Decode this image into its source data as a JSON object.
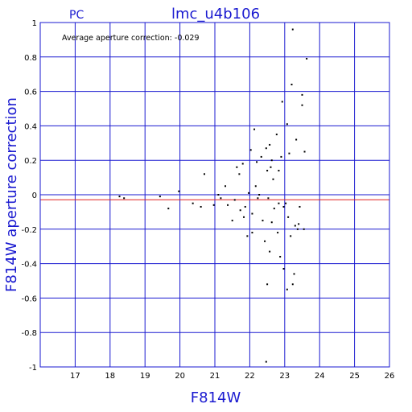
{
  "chart_data": {
    "type": "scatter",
    "title": "lmc_u4b106",
    "corner_label": "PC",
    "xlabel": "F814W",
    "ylabel": "F814W aperture correction",
    "annotation": "Average aperture correction: -0.029",
    "xlim": [
      16,
      26
    ],
    "ylim": [
      -1,
      1
    ],
    "xticks": [
      17,
      18,
      19,
      20,
      21,
      22,
      23,
      24,
      25,
      26
    ],
    "yticks": [
      -1,
      -0.8,
      -0.6,
      -0.4,
      -0.2,
      0,
      0.2,
      0.4,
      0.6,
      0.8,
      1
    ],
    "xtick_labels": [
      "17",
      "18",
      "19",
      "20",
      "21",
      "22",
      "23",
      "24",
      "25",
      "26"
    ],
    "ytick_labels": [
      "-1",
      "-0.8",
      "-0.6",
      "-0.4",
      "-0.2",
      "0",
      "0.2",
      "0.4",
      "0.6",
      "0.8",
      "1"
    ],
    "grid": true,
    "reference_lines": [
      {
        "y": 0,
        "color": "#1a1ad0"
      },
      {
        "y": -0.029,
        "color": "#e02020"
      }
    ],
    "points": [
      {
        "x": 18.27,
        "y": -0.01
      },
      {
        "x": 18.4,
        "y": -0.02
      },
      {
        "x": 19.43,
        "y": -0.01
      },
      {
        "x": 19.67,
        "y": -0.08
      },
      {
        "x": 19.97,
        "y": 0.02
      },
      {
        "x": 20.37,
        "y": -0.05
      },
      {
        "x": 20.6,
        "y": -0.07
      },
      {
        "x": 20.7,
        "y": 0.12
      },
      {
        "x": 20.97,
        "y": -0.06
      },
      {
        "x": 21.1,
        "y": 0.0
      },
      {
        "x": 21.17,
        "y": -0.02
      },
      {
        "x": 21.3,
        "y": 0.05
      },
      {
        "x": 21.37,
        "y": -0.06
      },
      {
        "x": 21.5,
        "y": -0.15
      },
      {
        "x": 21.57,
        "y": -0.03
      },
      {
        "x": 21.63,
        "y": 0.16
      },
      {
        "x": 21.7,
        "y": 0.12
      },
      {
        "x": 21.73,
        "y": -0.09
      },
      {
        "x": 21.8,
        "y": 0.18
      },
      {
        "x": 21.83,
        "y": -0.13
      },
      {
        "x": 21.87,
        "y": -0.07
      },
      {
        "x": 21.93,
        "y": -0.24
      },
      {
        "x": 21.97,
        "y": 0.01
      },
      {
        "x": 22.03,
        "y": 0.26
      },
      {
        "x": 22.07,
        "y": -0.11
      },
      {
        "x": 22.13,
        "y": 0.38
      },
      {
        "x": 22.17,
        "y": 0.05
      },
      {
        "x": 22.2,
        "y": 0.19
      },
      {
        "x": 22.23,
        "y": -0.02
      },
      {
        "x": 22.27,
        "y": 0.0
      },
      {
        "x": 22.33,
        "y": 0.22
      },
      {
        "x": 22.37,
        "y": -0.15
      },
      {
        "x": 22.43,
        "y": -0.27
      },
      {
        "x": 22.47,
        "y": 0.27
      },
      {
        "x": 22.5,
        "y": 0.14
      },
      {
        "x": 22.53,
        "y": -0.02
      },
      {
        "x": 22.57,
        "y": 0.29
      },
      {
        "x": 22.6,
        "y": 0.16
      },
      {
        "x": 22.63,
        "y": -0.16
      },
      {
        "x": 22.67,
        "y": 0.09
      },
      {
        "x": 22.7,
        "y": -0.08
      },
      {
        "x": 22.77,
        "y": 0.35
      },
      {
        "x": 22.8,
        "y": -0.22
      },
      {
        "x": 22.83,
        "y": 0.14
      },
      {
        "x": 22.87,
        "y": -0.36
      },
      {
        "x": 22.93,
        "y": 0.54
      },
      {
        "x": 22.97,
        "y": -0.07
      },
      {
        "x": 23.03,
        "y": -0.05
      },
      {
        "x": 23.07,
        "y": 0.41
      },
      {
        "x": 23.1,
        "y": -0.13
      },
      {
        "x": 23.13,
        "y": 0.24
      },
      {
        "x": 23.17,
        "y": -0.24
      },
      {
        "x": 23.2,
        "y": 0.64
      },
      {
        "x": 23.23,
        "y": 0.96
      },
      {
        "x": 23.27,
        "y": -0.46
      },
      {
        "x": 23.33,
        "y": 0.32
      },
      {
        "x": 23.37,
        "y": -0.2
      },
      {
        "x": 23.43,
        "y": -0.07
      },
      {
        "x": 23.5,
        "y": 0.58
      },
      {
        "x": 23.57,
        "y": 0.25
      },
      {
        "x": 23.63,
        "y": 0.79
      },
      {
        "x": 23.23,
        "y": -0.52
      },
      {
        "x": 22.5,
        "y": -0.52
      },
      {
        "x": 22.47,
        "y": -0.97
      },
      {
        "x": 23.5,
        "y": 0.52
      },
      {
        "x": 23.4,
        "y": -0.17
      },
      {
        "x": 22.57,
        "y": -0.33
      },
      {
        "x": 22.97,
        "y": -0.43
      },
      {
        "x": 23.07,
        "y": -0.55
      },
      {
        "x": 22.83,
        "y": -0.05
      },
      {
        "x": 22.07,
        "y": -0.22
      },
      {
        "x": 23.3,
        "y": -0.18
      },
      {
        "x": 22.9,
        "y": 0.22
      },
      {
        "x": 22.63,
        "y": 0.2
      },
      {
        "x": 23.55,
        "y": -0.2
      }
    ],
    "colors": {
      "axis": "#1a1ad0",
      "grid": "#1a1ad0",
      "text": "#1a1ad0",
      "zero_line_red": "#e02020",
      "points": "#000000"
    }
  }
}
